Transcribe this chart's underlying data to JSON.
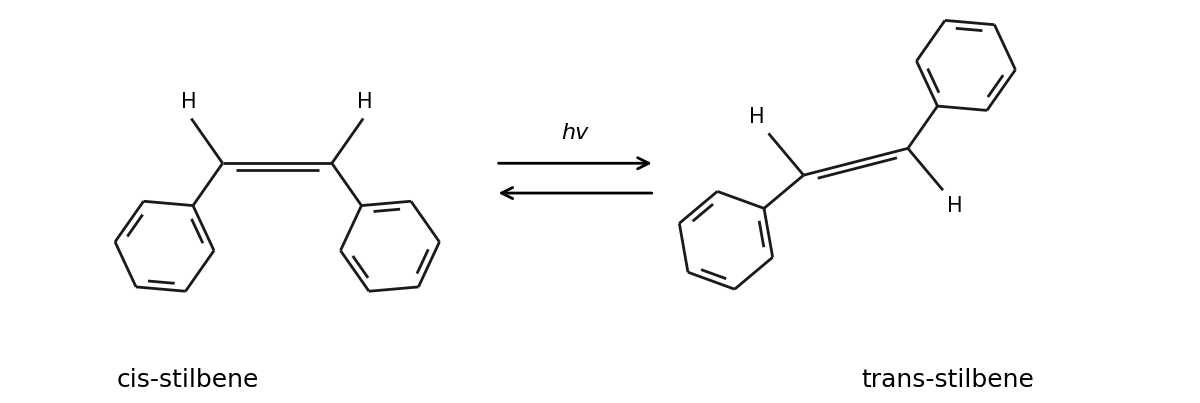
{
  "background_color": "#ffffff",
  "line_color": "#1a1a1a",
  "label_cis": "cis-stilbene",
  "label_trans": "trans-stilbene",
  "hv_label": "hv",
  "figsize": [
    12.0,
    4.03
  ],
  "dpi": 100,
  "lw": 2.0,
  "font_size_label": 18,
  "font_size_H": 15
}
